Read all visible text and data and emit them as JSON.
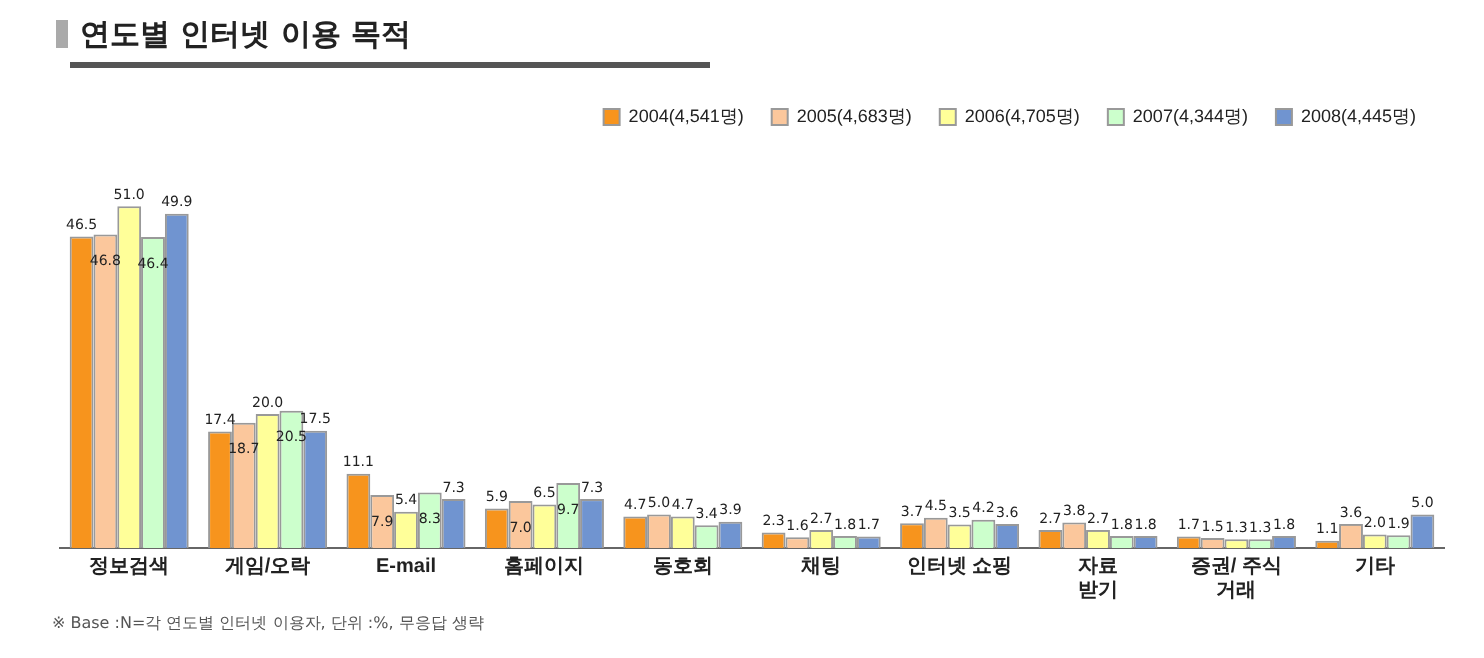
{
  "chart_data": {
    "type": "bar",
    "title": "연도별 인터넷 이용 목적",
    "categories": [
      "정보검색",
      "게임/오락",
      "E-mail",
      "홈페이지",
      "동호회",
      "채팅",
      "인터넷 쇼핑",
      "자료\n받기",
      "증권/ 주식\n거래",
      "기타"
    ],
    "series": [
      {
        "name": "2004(4,541명)",
        "color": "#f7941d",
        "values": [
          46.5,
          17.4,
          11.1,
          5.9,
          4.7,
          2.3,
          3.7,
          2.7,
          1.7,
          1.1
        ],
        "value_labels": [
          "46.5",
          "17.4",
          "11.1",
          "5.9",
          "4.7",
          "2.3",
          "3.7",
          "2.7",
          "1.7",
          "1.1"
        ]
      },
      {
        "name": "2005(4,683명)",
        "color": "#fbc79c",
        "values": [
          46.8,
          18.7,
          7.9,
          7.0,
          5.0,
          1.6,
          4.5,
          3.8,
          1.5,
          3.6
        ],
        "value_labels": [
          "46.8",
          "18.7",
          "7.9",
          "7.0",
          "5.0",
          "1.6",
          "4.5",
          "3.8",
          "1.5",
          "3.6"
        ]
      },
      {
        "name": "2006(4,705명)",
        "color": "#ffff99",
        "values": [
          51.0,
          20.0,
          5.4,
          6.5,
          4.7,
          2.7,
          3.5,
          2.7,
          1.3,
          2.0
        ],
        "value_labels": [
          "51.0",
          "20.0",
          "5.4",
          "6.5",
          "4.7",
          "2.7",
          "3.5",
          "2.7",
          "1.3",
          "2.0"
        ]
      },
      {
        "name": "2007(4,344명)",
        "color": "#ccffcc",
        "values": [
          46.4,
          20.5,
          8.3,
          9.7,
          3.4,
          1.8,
          4.2,
          1.8,
          1.3,
          1.9
        ],
        "value_labels": [
          "46.4",
          "20.5",
          "8.3",
          "9.7",
          "3.4",
          "1.8",
          "4.2",
          "1.8",
          "1.3",
          "1.9"
        ]
      },
      {
        "name": "2008(4,445명)",
        "color": "#7094d0",
        "values": [
          49.9,
          17.5,
          7.3,
          7.3,
          3.9,
          1.7,
          3.6,
          1.8,
          1.8,
          5.0
        ],
        "value_labels": [
          "49.9",
          "17.5",
          "7.3",
          "7.3",
          "3.9",
          "1.7",
          "3.6",
          "1.8",
          "1.8",
          "5.0"
        ]
      }
    ],
    "legend": "top right",
    "grid": false,
    "tick_labels": "x",
    "annotations": [
      "※ Base :N=각 연도별 인터넷 이용자, 단위 :%, 무응답 생략"
    ]
  }
}
